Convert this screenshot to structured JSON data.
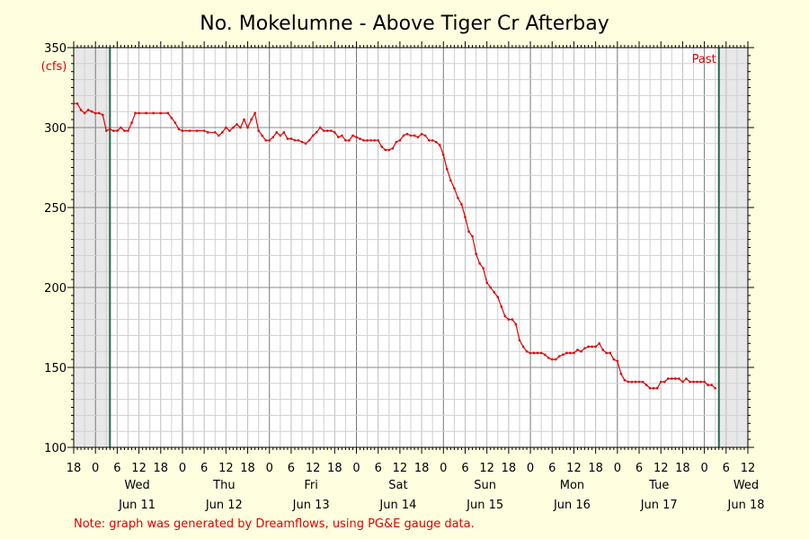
{
  "chart_data": {
    "type": "line",
    "title": "No. Mokelumne - Above Tiger Cr Afterbay",
    "ylabel": "(cfs)",
    "ylim": [
      100,
      350
    ],
    "yticks": [
      100,
      150,
      200,
      250,
      300,
      350
    ],
    "x_hours_labels": [
      "18",
      "0",
      "6",
      "12",
      "18",
      "0",
      "6",
      "12",
      "18",
      "0",
      "6",
      "12",
      "18",
      "0",
      "6",
      "12",
      "18",
      "0",
      "6",
      "12",
      "18",
      "0",
      "6",
      "12",
      "18",
      "0",
      "6",
      "12",
      "18",
      "0",
      "6",
      "12"
    ],
    "x_day_labels": [
      {
        "day": "Wed",
        "date": "Jun 11"
      },
      {
        "day": "Thu",
        "date": "Jun 12"
      },
      {
        "day": "Fri",
        "date": "Jun 13"
      },
      {
        "day": "Sat",
        "date": "Jun 14"
      },
      {
        "day": "Sun",
        "date": "Jun 15"
      },
      {
        "day": "Mon",
        "date": "Jun 16"
      },
      {
        "day": "Tue",
        "date": "Jun 17"
      },
      {
        "day": "Wed",
        "date": "Jun 18"
      }
    ],
    "past_label": "Past",
    "note": "Note: graph was generated by Dreamflows, using PG&E gauge data.",
    "grid": true,
    "series": [
      {
        "color": "#e00000",
        "points": [
          [
            -6,
            315
          ],
          [
            -5,
            315
          ],
          [
            -4,
            311
          ],
          [
            -3,
            309
          ],
          [
            -2,
            311
          ],
          [
            -1,
            310
          ],
          [
            0,
            309
          ],
          [
            1,
            309
          ],
          [
            2,
            308
          ],
          [
            3,
            298
          ],
          [
            4,
            299
          ],
          [
            5,
            298
          ],
          [
            6,
            298
          ],
          [
            7,
            300
          ],
          [
            8,
            298
          ],
          [
            9,
            298
          ],
          [
            10,
            303
          ],
          [
            11,
            309
          ],
          [
            12,
            309
          ],
          [
            14,
            309
          ],
          [
            16,
            309
          ],
          [
            18,
            309
          ],
          [
            20,
            309
          ],
          [
            21,
            306
          ],
          [
            22,
            303
          ],
          [
            23,
            299
          ],
          [
            24,
            298
          ],
          [
            26,
            298
          ],
          [
            28,
            298
          ],
          [
            30,
            298
          ],
          [
            31,
            297
          ],
          [
            33,
            297
          ],
          [
            34,
            295
          ],
          [
            35,
            297
          ],
          [
            36,
            300
          ],
          [
            37,
            298
          ],
          [
            38,
            300
          ],
          [
            39,
            302
          ],
          [
            40,
            300
          ],
          [
            41,
            305
          ],
          [
            42,
            300
          ],
          [
            43,
            305
          ],
          [
            44,
            309
          ],
          [
            45,
            298
          ],
          [
            46,
            295
          ],
          [
            47,
            292
          ],
          [
            48,
            292
          ],
          [
            49,
            294
          ],
          [
            50,
            297
          ],
          [
            51,
            295
          ],
          [
            52,
            297
          ],
          [
            53,
            293
          ],
          [
            54,
            293
          ],
          [
            55,
            292
          ],
          [
            56,
            292
          ],
          [
            57,
            291
          ],
          [
            58,
            290
          ],
          [
            59,
            292
          ],
          [
            60,
            295
          ],
          [
            61,
            297
          ],
          [
            62,
            300
          ],
          [
            63,
            298
          ],
          [
            64,
            298
          ],
          [
            65,
            298
          ],
          [
            66,
            297
          ],
          [
            67,
            294
          ],
          [
            68,
            295
          ],
          [
            69,
            292
          ],
          [
            70,
            292
          ],
          [
            71,
            295
          ],
          [
            72,
            294
          ],
          [
            73,
            293
          ],
          [
            74,
            292
          ],
          [
            75,
            292
          ],
          [
            76,
            292
          ],
          [
            77,
            292
          ],
          [
            78,
            292
          ],
          [
            79,
            288
          ],
          [
            80,
            286
          ],
          [
            81,
            286
          ],
          [
            82,
            287
          ],
          [
            83,
            291
          ],
          [
            84,
            292
          ],
          [
            85,
            295
          ],
          [
            86,
            296
          ],
          [
            87,
            295
          ],
          [
            88,
            295
          ],
          [
            89,
            294
          ],
          [
            90,
            296
          ],
          [
            91,
            295
          ],
          [
            92,
            292
          ],
          [
            93,
            292
          ],
          [
            94,
            291
          ],
          [
            95,
            289
          ],
          [
            96,
            283
          ],
          [
            97,
            274
          ],
          [
            98,
            267
          ],
          [
            99,
            262
          ],
          [
            100,
            256
          ],
          [
            101,
            252
          ],
          [
            102,
            244
          ],
          [
            103,
            235
          ],
          [
            104,
            232
          ],
          [
            105,
            221
          ],
          [
            106,
            215
          ],
          [
            107,
            212
          ],
          [
            108,
            203
          ],
          [
            109,
            200
          ],
          [
            110,
            197
          ],
          [
            111,
            194
          ],
          [
            112,
            188
          ],
          [
            113,
            182
          ],
          [
            114,
            180
          ],
          [
            115,
            180
          ],
          [
            116,
            177
          ],
          [
            117,
            167
          ],
          [
            118,
            163
          ],
          [
            119,
            160
          ],
          [
            120,
            159
          ],
          [
            121,
            159
          ],
          [
            122,
            159
          ],
          [
            123,
            159
          ],
          [
            124,
            158
          ],
          [
            125,
            156
          ],
          [
            126,
            155
          ],
          [
            127,
            155
          ],
          [
            128,
            157
          ],
          [
            129,
            158
          ],
          [
            130,
            159
          ],
          [
            131,
            159
          ],
          [
            132,
            159
          ],
          [
            133,
            161
          ],
          [
            134,
            160
          ],
          [
            135,
            162
          ],
          [
            136,
            163
          ],
          [
            137,
            163
          ],
          [
            138,
            163
          ],
          [
            139,
            165
          ],
          [
            140,
            161
          ],
          [
            141,
            159
          ],
          [
            142,
            159
          ],
          [
            143,
            155
          ],
          [
            144,
            154
          ],
          [
            145,
            146
          ],
          [
            146,
            142
          ],
          [
            147,
            141
          ],
          [
            148,
            141
          ],
          [
            149,
            141
          ],
          [
            150,
            141
          ],
          [
            151,
            141
          ],
          [
            152,
            139
          ],
          [
            153,
            137
          ],
          [
            154,
            137
          ],
          [
            155,
            137
          ],
          [
            156,
            141
          ],
          [
            157,
            141
          ],
          [
            158,
            143
          ],
          [
            159,
            143
          ],
          [
            160,
            143
          ],
          [
            161,
            143
          ],
          [
            162,
            141
          ],
          [
            163,
            143
          ],
          [
            164,
            141
          ],
          [
            165,
            141
          ],
          [
            166,
            141
          ],
          [
            167,
            141
          ],
          [
            168,
            141
          ],
          [
            169,
            139
          ],
          [
            170,
            139
          ],
          [
            171,
            137
          ]
        ]
      }
    ]
  }
}
